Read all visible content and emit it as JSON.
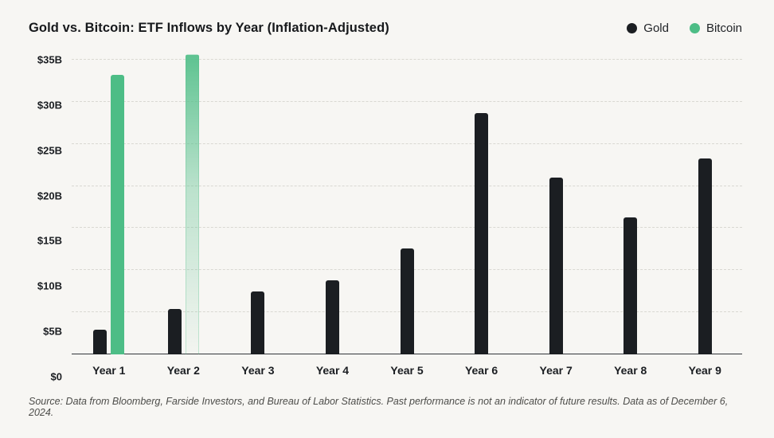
{
  "header": {
    "title": "Gold vs. Bitcoin: ETF Inflows by Year (Inflation-Adjusted)"
  },
  "footer": {
    "source": "Source: Data from Bloomberg, Farside Investors, and Bureau of Labor Statistics. Past performance is not an indicator of future results. Data as of December 6, 2024."
  },
  "colors": {
    "background": "#f7f6f3",
    "gold": "#1b1e22",
    "bitcoin": "#4dbd86",
    "gridline": "#d9d8d2",
    "axis": "#33363a"
  },
  "chart_data": {
    "type": "bar",
    "title": "Gold vs. Bitcoin: ETF Inflows by Year (Inflation-Adjusted)",
    "categories": [
      "Year 1",
      "Year 2",
      "Year 3",
      "Year 4",
      "Year 5",
      "Year 6",
      "Year 7",
      "Year 8",
      "Year 9"
    ],
    "series": [
      {
        "name": "Gold",
        "color": "#1b1e22",
        "values": [
          2.9,
          5.4,
          7.5,
          8.8,
          12.6,
          28.7,
          21.0,
          16.3,
          23.3
        ]
      },
      {
        "name": "Bitcoin",
        "color": "#4dbd86",
        "values": [
          33.2,
          35.7,
          null,
          null,
          null,
          null,
          null,
          null,
          null
        ],
        "point_styles": [
          "solid",
          "projected",
          null,
          null,
          null,
          null,
          null,
          null,
          null
        ]
      }
    ],
    "xlabel": "",
    "ylabel": "",
    "ylim": [
      0,
      35
    ],
    "yticks": [
      0,
      5,
      10,
      15,
      20,
      25,
      30,
      35
    ],
    "ytick_labels": [
      "$0",
      "$5B",
      "$10B",
      "$15B",
      "$20B",
      "$25B",
      "$30B",
      "$35B"
    ],
    "grid": "dashed horizontal lines",
    "legend_position": "top-right",
    "value_unit": "billions USD"
  }
}
